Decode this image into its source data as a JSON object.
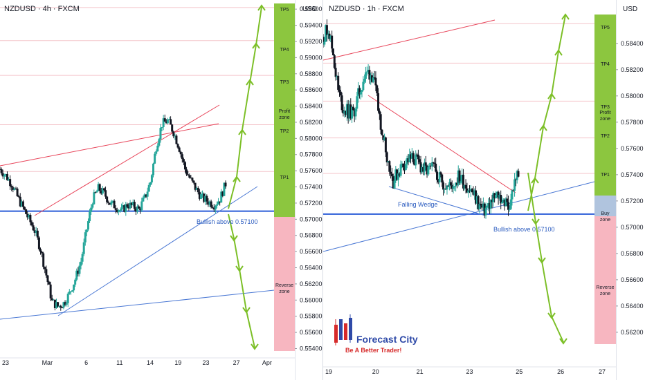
{
  "charts": [
    {
      "title": "NZDUSD · 4h · FXCM",
      "currency_label": "USD",
      "y_min": 0.5537,
      "y_max": 0.5967,
      "y_ticks": [
        "0.55400",
        "0.55600",
        "0.55800",
        "0.56000",
        "0.56200",
        "0.56400",
        "0.56600",
        "0.56800",
        "0.57000",
        "0.57200",
        "0.57400",
        "0.57600",
        "0.57800",
        "0.58000",
        "0.58200",
        "0.58400",
        "0.58600",
        "0.58800",
        "0.59000",
        "0.59200",
        "0.59400",
        "0.59600"
      ],
      "x_ticks": [
        {
          "label": "23",
          "t": 0.01
        },
        {
          "label": "Mar",
          "t": 0.16
        },
        {
          "label": "6",
          "t": 0.3
        },
        {
          "label": "11",
          "t": 0.42
        },
        {
          "label": "14",
          "t": 0.53
        },
        {
          "label": "19",
          "t": 0.63
        },
        {
          "label": "23",
          "t": 0.73
        },
        {
          "label": "27",
          "t": 0.84
        },
        {
          "label": "Apr",
          "t": 0.95
        }
      ],
      "support_level": 0.571,
      "annotations": [
        "Bullish above 0.57100"
      ],
      "zones": [
        {
          "label": "TP5",
          "type": "tp",
          "price": 0.5962
        },
        {
          "label": "TP4",
          "type": "tp",
          "price": 0.5921
        },
        {
          "label": "TP3",
          "type": "tp",
          "price": 0.5878
        },
        {
          "label": "Profit zone",
          "type": "profit"
        },
        {
          "label": "TP2",
          "type": "tp",
          "price": 0.5817
        },
        {
          "label": "TP1",
          "type": "tp",
          "price": 0.5759
        },
        {
          "label": "Reverse zone",
          "type": "reverse"
        }
      ],
      "close_path": [
        0.5762,
        0.5754,
        0.5744,
        0.5728,
        0.5714,
        0.57,
        0.5686,
        0.5663,
        0.5631,
        0.5598,
        0.5592,
        0.5596,
        0.5608,
        0.5626,
        0.5648,
        0.5688,
        0.5724,
        0.5738,
        0.5732,
        0.572,
        0.5716,
        0.571,
        0.5718,
        0.5716,
        0.5712,
        0.5726,
        0.5746,
        0.579,
        0.5818,
        0.5822,
        0.5808,
        0.5788,
        0.5762,
        0.5748,
        0.5736,
        0.5726,
        0.5722,
        0.5718,
        0.5725,
        0.5744
      ]
    },
    {
      "title": "NZDUSD · 1h · FXCM",
      "currency_label": "USD",
      "y_min": 0.5611,
      "y_max": 0.5862,
      "y_ticks": [
        "0.56200",
        "0.56400",
        "0.56600",
        "0.56800",
        "0.57000",
        "0.57200",
        "0.57400",
        "0.57600",
        "0.57800",
        "0.58000",
        "0.58200",
        "0.58400"
      ],
      "x_ticks": [
        {
          "label": "19",
          "t": 0.01
        },
        {
          "label": "20",
          "t": 0.18
        },
        {
          "label": "21",
          "t": 0.34
        },
        {
          "label": "23",
          "t": 0.52
        },
        {
          "label": "25",
          "t": 0.7
        },
        {
          "label": "26",
          "t": 0.85
        },
        {
          "label": "27",
          "t": 1.0
        }
      ],
      "support_level": 0.571,
      "annotations": [
        "Falling Wedge",
        "Bullish above 0.57100"
      ],
      "zones": [
        {
          "label": "TP5",
          "type": "tp",
          "price": 0.5855
        },
        {
          "label": "TP4",
          "type": "tp",
          "price": 0.5825
        },
        {
          "label": "TP3",
          "type": "tp",
          "price": 0.5796
        },
        {
          "label": "Profit zone",
          "type": "profit"
        },
        {
          "label": "TP2",
          "type": "tp",
          "price": 0.5768
        },
        {
          "label": "TP1",
          "type": "tp",
          "price": 0.5741
        },
        {
          "label": "Buy zone",
          "type": "buy"
        },
        {
          "label": "Reverse zone",
          "type": "reverse"
        }
      ],
      "close_path": [
        0.5845,
        0.5852,
        0.5832,
        0.5804,
        0.579,
        0.5788,
        0.5786,
        0.58,
        0.5812,
        0.5818,
        0.5815,
        0.579,
        0.577,
        0.575,
        0.5735,
        0.5742,
        0.5748,
        0.5751,
        0.5752,
        0.5749,
        0.5744,
        0.5742,
        0.5745,
        0.574,
        0.5734,
        0.573,
        0.5733,
        0.5738,
        0.5735,
        0.573,
        0.5725,
        0.5718,
        0.5712,
        0.5716,
        0.5721,
        0.5724,
        0.572,
        0.5715,
        0.573,
        0.5743
      ]
    }
  ],
  "logo": {
    "name": "Forecast City",
    "tagline": "Be A Better Trader!"
  },
  "chart_data": [
    {
      "type": "line",
      "title": "NZDUSD · 4h · FXCM",
      "ylabel": "USD",
      "x_ticks": [
        "23",
        "Mar",
        "6",
        "11",
        "14",
        "19",
        "23",
        "27",
        "Apr"
      ],
      "ylim": [
        0.554,
        0.596
      ],
      "series": [
        {
          "values": [
            0.5762,
            0.5728,
            0.57,
            0.5663,
            0.5598,
            0.5596,
            0.5626,
            0.5688,
            0.5738,
            0.572,
            0.571,
            0.5716,
            0.5726,
            0.579,
            0.5822,
            0.5788,
            0.5748,
            0.5726,
            0.5718,
            0.5744
          ]
        }
      ],
      "horizontal_levels": [
        0.571
      ]
    },
    {
      "type": "line",
      "title": "NZDUSD · 1h · FXCM",
      "ylabel": "USD",
      "x_ticks": [
        "19",
        "20",
        "21",
        "23",
        "25",
        "26",
        "27"
      ],
      "ylim": [
        0.562,
        0.584
      ],
      "series": [
        {
          "values": [
            0.5845,
            0.5832,
            0.579,
            0.5786,
            0.5812,
            0.579,
            0.575,
            0.5742,
            0.5751,
            0.5749,
            0.5742,
            0.574,
            0.573,
            0.5738,
            0.573,
            0.5718,
            0.5716,
            0.5724,
            0.5715,
            0.5743
          ]
        }
      ],
      "horizontal_levels": [
        0.571
      ]
    }
  ],
  "colors": {
    "up": "#26a69a",
    "down": "#131722",
    "support": "#2a5bd7",
    "trend_red": "#e8455a",
    "trend_blue": "#4a78d4",
    "arrow": "#7cbf27",
    "tp_zone": "#8cc63f",
    "reverse_zone": "#f7b6c0",
    "buy_zone": "#b0c4de",
    "hgrid": "#f4c3c9"
  }
}
